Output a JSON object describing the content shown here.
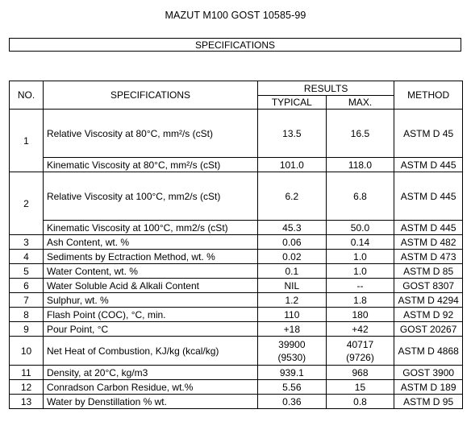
{
  "document": {
    "title": "MAZUT M100 GOST 10585-99",
    "section": "SPECIFICATIONS"
  },
  "table": {
    "headers": {
      "no": "NO.",
      "spec": "SPECIFICATIONS",
      "results": "RESULTS",
      "typical": "TYPICAL",
      "max": "MAX.",
      "method": "METHOD"
    },
    "rows": [
      {
        "no": "1",
        "spec": "Relative Viscosity at 80°C, mm²/s (cSt)",
        "typical": "13.5",
        "max": "16.5",
        "method": "ASTM D 45"
      },
      {
        "no": "",
        "spec": "Kinematic Viscosity at 80°C, mm²/s (cSt)",
        "typical": "101.0",
        "max": "118.0",
        "method": "ASTM D 445"
      },
      {
        "no": "2",
        "spec": "Relative Viscosity at 100°C, mm2/s (cSt)",
        "typical": "6.2",
        "max": "6.8",
        "method": "ASTM D 445"
      },
      {
        "no": "",
        "spec": "Kinematic Viscosity at 100°C, mm2/s (cSt)",
        "typical": "45.3",
        "max": "50.0",
        "method": "ASTM D 445"
      },
      {
        "no": "3",
        "spec": "Ash Content, wt. %",
        "typical": "0.06",
        "max": "0.14",
        "method": "ASTM D 482"
      },
      {
        "no": "4",
        "spec": "Sediments by Ectraction Method, wt. %",
        "typical": "0.02",
        "max": "1.0",
        "method": "ASTM D 473"
      },
      {
        "no": "5",
        "spec": "Water Content, wt. %",
        "typical": "0.1",
        "max": "1.0",
        "method": "ASTM D 85"
      },
      {
        "no": "6",
        "spec": "Water Soluble Acid & Alkali Content",
        "typical": "NIL",
        "max": "--",
        "method": "GOST 8307"
      },
      {
        "no": "7",
        "spec": "Sulphur, wt. %",
        "typical": "1.2",
        "max": "1.8",
        "method": "ASTM D 4294"
      },
      {
        "no": "8",
        "spec": "Flash Point (COC), °C, min.",
        "typical": "110",
        "max": "180",
        "method": "ASTM D 92"
      },
      {
        "no": "9",
        "spec": "Pour Point, °C",
        "typical": "+18",
        "max": "+42",
        "method": "GOST 20267"
      },
      {
        "no": "10",
        "spec": "Net Heat of Combustion, KJ/kg (kcal/kg)",
        "typical": "39900",
        "typical2": "(9530)",
        "max": "40717",
        "max2": "(9726)",
        "method": "ASTM D 4868"
      },
      {
        "no": "11",
        "spec": "Density, at 20°C, kg/m3",
        "typical": "939.1",
        "max": "968",
        "method": "GOST 3900"
      },
      {
        "no": "12",
        "spec": "Conradson Carbon Residue, wt.%",
        "typical": "5.56",
        "max": "15",
        "method": "ASTM D 189"
      },
      {
        "no": "13",
        "spec": "Water by Denstillation % wt.",
        "typical": "0.36",
        "max": "0.8",
        "method": "ASTM D 95"
      }
    ]
  }
}
